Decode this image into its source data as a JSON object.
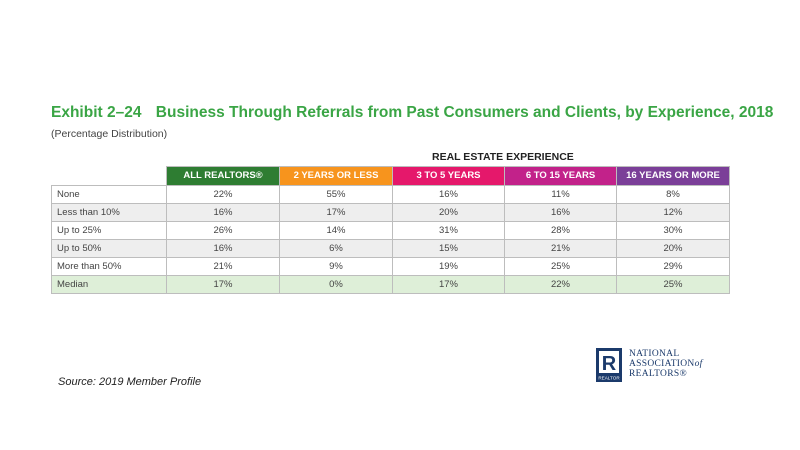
{
  "chart_data": {
    "type": "table",
    "exhibit_label": "Exhibit 2–24",
    "title": "Business Through Referrals from Past Consumers and Clients, by Experience, 2018",
    "subtitle": "(Percentage Distribution)",
    "column_group_label": "REAL ESTATE EXPERIENCE",
    "columns": [
      {
        "label": "ALL REALTORS®",
        "color": "#2e7d32"
      },
      {
        "label": "2 YEARS OR LESS",
        "color": "#f7941d"
      },
      {
        "label": "3 TO 5 YEARS",
        "color": "#e5186b"
      },
      {
        "label": "6 TO 15 YEARS",
        "color": "#c2228a"
      },
      {
        "label": "16 YEARS OR MORE",
        "color": "#7b3f98"
      }
    ],
    "rows": [
      {
        "label": "None",
        "values": [
          "22%",
          "55%",
          "16%",
          "11%",
          "8%"
        ]
      },
      {
        "label": "Less than 10%",
        "values": [
          "16%",
          "17%",
          "20%",
          "16%",
          "12%"
        ]
      },
      {
        "label": "Up to 25%",
        "values": [
          "26%",
          "14%",
          "31%",
          "28%",
          "30%"
        ]
      },
      {
        "label": "Up to 50%",
        "values": [
          "16%",
          "6%",
          "15%",
          "21%",
          "20%"
        ]
      },
      {
        "label": "More than 50%",
        "values": [
          "21%",
          "9%",
          "19%",
          "25%",
          "29%"
        ]
      },
      {
        "label": "Median",
        "values": [
          "17%",
          "0%",
          "17%",
          "22%",
          "25%"
        ]
      }
    ]
  },
  "source": "Source: 2019 Member Profile",
  "logo": {
    "line1": "NATIONAL",
    "line2": "ASSOCIATION",
    "line2_suffix": "of",
    "line3": "REALTORS®",
    "mark_letter": "R",
    "mark_caption": "REALTOR",
    "color": "#1b3a6b"
  }
}
